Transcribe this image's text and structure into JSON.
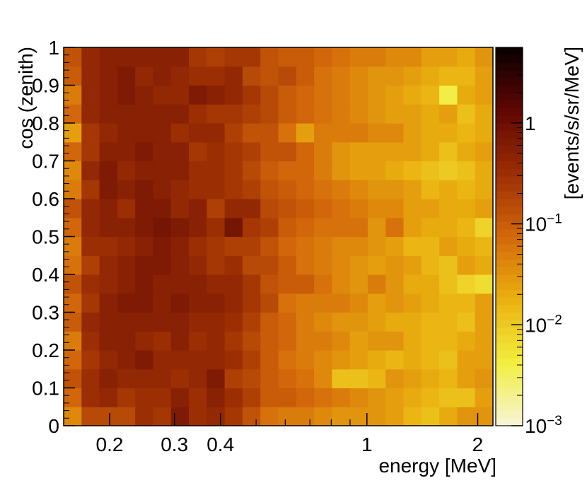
{
  "chart_data": {
    "type": "heatmap",
    "title": "",
    "xlabel": "energy [MeV]",
    "ylabel": "cos (zenith)",
    "zlabel": "[events/s/sr/MeV]",
    "x_scale": "log",
    "z_scale": "log",
    "x_range": [
      0.15,
      2.2
    ],
    "y_range": [
      0,
      1
    ],
    "z_range": [
      0.001,
      5.6
    ],
    "grid": false,
    "x_ticks": [
      {
        "value": 0.2,
        "label": "0.2"
      },
      {
        "value": 0.3,
        "label": "0.3"
      },
      {
        "value": 0.4,
        "label": "0.4"
      },
      {
        "value": 1,
        "label": "1"
      },
      {
        "value": 2,
        "label": "2"
      }
    ],
    "y_ticks": [
      {
        "value": 0,
        "label": "0"
      },
      {
        "value": 0.1,
        "label": "0.1"
      },
      {
        "value": 0.2,
        "label": "0.2"
      },
      {
        "value": 0.3,
        "label": "0.3"
      },
      {
        "value": 0.4,
        "label": "0.4"
      },
      {
        "value": 0.5,
        "label": "0.5"
      },
      {
        "value": 0.6,
        "label": "0.6"
      },
      {
        "value": 0.7,
        "label": "0.7"
      },
      {
        "value": 0.8,
        "label": "0.8"
      },
      {
        "value": 0.9,
        "label": "0.9"
      },
      {
        "value": 1,
        "label": "1"
      }
    ],
    "z_ticks": [
      {
        "value": 0.001,
        "label": "10",
        "exp": "−3"
      },
      {
        "value": 0.01,
        "label": "10",
        "exp": "−2"
      },
      {
        "value": 0.1,
        "label": "10",
        "exp": "−1"
      },
      {
        "value": 1,
        "label": "1",
        "exp": ""
      }
    ],
    "x_bin_count": 24,
    "y_bin_count": 20,
    "y_bin_edges_note": "uniform bins from 0 to 1 in steps of 0.05",
    "colormap": [
      "#f7f4d8",
      "#f3ee40",
      "#eab10f",
      "#d4680a",
      "#9c2e04",
      "#600703",
      "#0a0000"
    ],
    "rows_low_to_high_log10": [
      [
        -1.4,
        -0.8,
        -0.8,
        -0.8,
        -0.5,
        -0.6,
        -0.2,
        -0.5,
        -0.4,
        -0.6,
        -0.9,
        -1.2,
        -1.3,
        -1.3,
        -1.4,
        -1.5,
        -1.5,
        -1.5,
        -1.6,
        -1.8,
        -1.9,
        -1.7,
        -1.5,
        -1.5
      ],
      [
        -1.1,
        -0.5,
        -0.4,
        -0.6,
        -0.5,
        -0.5,
        -0.3,
        -0.5,
        -0.3,
        -0.5,
        -0.7,
        -1.0,
        -1.0,
        -1.1,
        -1.2,
        -1.3,
        -1.4,
        -1.5,
        -1.6,
        -1.7,
        -1.8,
        -1.9,
        -1.9,
        -1.6
      ],
      [
        -0.9,
        -0.5,
        -0.3,
        -0.4,
        -0.4,
        -0.4,
        -0.5,
        -0.4,
        -0.2,
        -0.7,
        -0.8,
        -1.0,
        -1.1,
        -1.2,
        -1.4,
        -1.9,
        -1.9,
        -1.8,
        -1.5,
        -1.6,
        -1.7,
        -1.8,
        -1.6,
        -1.5
      ],
      [
        -1.1,
        -0.6,
        -0.4,
        -0.3,
        -0.2,
        -0.4,
        -0.4,
        -0.4,
        -0.4,
        -0.5,
        -0.7,
        -1.0,
        -1.2,
        -1.3,
        -1.4,
        -1.5,
        -1.6,
        -1.7,
        -1.8,
        -1.7,
        -1.8,
        -1.9,
        -1.6,
        -1.6
      ],
      [
        -1.3,
        -0.5,
        -0.3,
        -0.3,
        -0.4,
        -0.5,
        -0.3,
        -0.5,
        -0.4,
        -0.6,
        -0.8,
        -1.0,
        -1.1,
        -1.3,
        -1.3,
        -1.4,
        -1.6,
        -1.5,
        -1.5,
        -1.7,
        -1.8,
        -1.8,
        -1.7,
        -1.6
      ],
      [
        -1.0,
        -0.4,
        -0.3,
        -0.3,
        -0.3,
        -0.3,
        -0.3,
        -0.4,
        -0.4,
        -0.5,
        -0.7,
        -1.0,
        -1.1,
        -1.3,
        -1.4,
        -1.5,
        -1.5,
        -1.6,
        -1.7,
        -1.7,
        -1.8,
        -1.8,
        -1.9,
        -1.6
      ],
      [
        -1.1,
        -0.6,
        -0.3,
        -0.2,
        -0.2,
        -0.3,
        -0.2,
        -0.3,
        -0.3,
        -0.4,
        -0.6,
        -0.8,
        -1.2,
        -1.3,
        -1.3,
        -1.3,
        -1.4,
        -1.6,
        -1.5,
        -1.6,
        -1.7,
        -1.8,
        -1.8,
        -1.6
      ],
      [
        -0.9,
        -0.5,
        -0.4,
        -0.3,
        -0.2,
        -0.3,
        -0.3,
        -0.3,
        -0.4,
        -0.4,
        -0.6,
        -0.9,
        -1.0,
        -1.0,
        -1.2,
        -1.4,
        -1.5,
        -1.3,
        -1.5,
        -1.7,
        -1.7,
        -1.9,
        -2.1,
        -2.2
      ],
      [
        -1.2,
        -0.7,
        -0.4,
        -0.3,
        -0.2,
        -0.2,
        -0.3,
        -0.4,
        -0.6,
        -0.5,
        -0.8,
        -0.8,
        -1.0,
        -1.2,
        -1.3,
        -1.4,
        -1.5,
        -1.6,
        -1.5,
        -1.6,
        -1.8,
        -1.9,
        -1.6,
        -1.7
      ],
      [
        -1.3,
        -0.5,
        -0.5,
        -0.4,
        -0.3,
        -0.2,
        -0.3,
        -0.5,
        -0.6,
        -0.7,
        -0.7,
        -0.9,
        -1.1,
        -1.2,
        -1.3,
        -1.4,
        -1.4,
        -1.5,
        -1.6,
        -1.8,
        -1.8,
        -1.6,
        -1.7,
        -1.8
      ],
      [
        -1.1,
        -0.4,
        -0.3,
        -0.3,
        -0.2,
        -0.1,
        -0.2,
        -0.3,
        -0.5,
        -0.1,
        -0.6,
        -0.7,
        -1.0,
        -1.1,
        -1.2,
        -1.2,
        -1.2,
        -1.5,
        -1.2,
        -1.6,
        -1.7,
        -1.7,
        -1.8,
        -2.1
      ],
      [
        -0.9,
        -0.4,
        -0.3,
        -0.5,
        -0.2,
        -0.2,
        -0.4,
        -0.3,
        -0.7,
        -0.4,
        -0.4,
        -0.8,
        -0.9,
        -1.0,
        -1.1,
        -1.2,
        -1.3,
        -1.4,
        -1.4,
        -1.6,
        -1.6,
        -1.7,
        -1.7,
        -1.6
      ],
      [
        -1.3,
        -0.6,
        -0.2,
        -0.3,
        -0.2,
        -0.3,
        -0.4,
        -0.5,
        -0.5,
        -0.6,
        -0.7,
        -0.9,
        -1.0,
        -1.1,
        -1.2,
        -1.3,
        -1.4,
        -1.5,
        -1.5,
        -1.6,
        -1.8,
        -1.7,
        -1.8,
        -1.7
      ],
      [
        -1.4,
        -0.4,
        -0.2,
        -0.4,
        -0.3,
        -0.3,
        -0.3,
        -0.5,
        -0.5,
        -0.6,
        -0.8,
        -1.0,
        -1.1,
        -1.1,
        -1.3,
        -1.5,
        -1.6,
        -1.6,
        -1.7,
        -1.8,
        -1.9,
        -2.0,
        -1.9,
        -1.7
      ],
      [
        -1.1,
        -0.6,
        -0.3,
        -0.3,
        -0.2,
        -0.3,
        -0.3,
        -0.6,
        -0.5,
        -0.6,
        -0.7,
        -0.9,
        -0.9,
        -1.1,
        -1.3,
        -1.5,
        -1.6,
        -1.6,
        -1.6,
        -1.6,
        -1.7,
        -1.9,
        -1.7,
        -1.6
      ],
      [
        -1.6,
        -0.6,
        -0.4,
        -0.3,
        -0.3,
        -0.3,
        -0.5,
        -0.4,
        -0.4,
        -0.7,
        -0.9,
        -0.9,
        -1.2,
        -1.6,
        -1.3,
        -1.3,
        -1.3,
        -1.4,
        -1.4,
        -1.6,
        -1.7,
        -1.7,
        -1.8,
        -1.7
      ],
      [
        -1.1,
        -0.4,
        -0.3,
        -0.3,
        -0.3,
        -0.3,
        -0.3,
        -0.5,
        -0.6,
        -0.6,
        -0.7,
        -0.8,
        -1.0,
        -1.1,
        -1.2,
        -1.3,
        -1.4,
        -1.5,
        -1.6,
        -1.6,
        -1.7,
        -1.6,
        -1.9,
        -1.7
      ],
      [
        -1.3,
        -0.4,
        -0.3,
        -0.2,
        -0.3,
        -0.4,
        -0.4,
        -0.2,
        -0.3,
        -0.4,
        -0.6,
        -0.8,
        -1.0,
        -1.1,
        -1.2,
        -1.3,
        -1.4,
        -1.5,
        -1.6,
        -1.7,
        -1.8,
        -2.4,
        -1.7,
        -1.6
      ],
      [
        -1.0,
        -0.4,
        -0.3,
        -0.2,
        -0.4,
        -0.3,
        -0.4,
        -0.5,
        -0.5,
        -0.4,
        -0.8,
        -0.9,
        -0.8,
        -1.0,
        -1.2,
        -1.3,
        -1.4,
        -1.5,
        -1.5,
        -1.6,
        -1.7,
        -1.8,
        -1.8,
        -1.6
      ],
      [
        -0.9,
        -0.4,
        -0.3,
        -0.3,
        -0.3,
        -0.3,
        -0.3,
        -0.6,
        -0.7,
        -0.6,
        -0.6,
        -0.9,
        -1.0,
        -1.0,
        -1.1,
        -1.2,
        -1.3,
        -1.3,
        -1.4,
        -1.4,
        -1.6,
        -1.6,
        -1.7,
        -1.5
      ]
    ]
  }
}
